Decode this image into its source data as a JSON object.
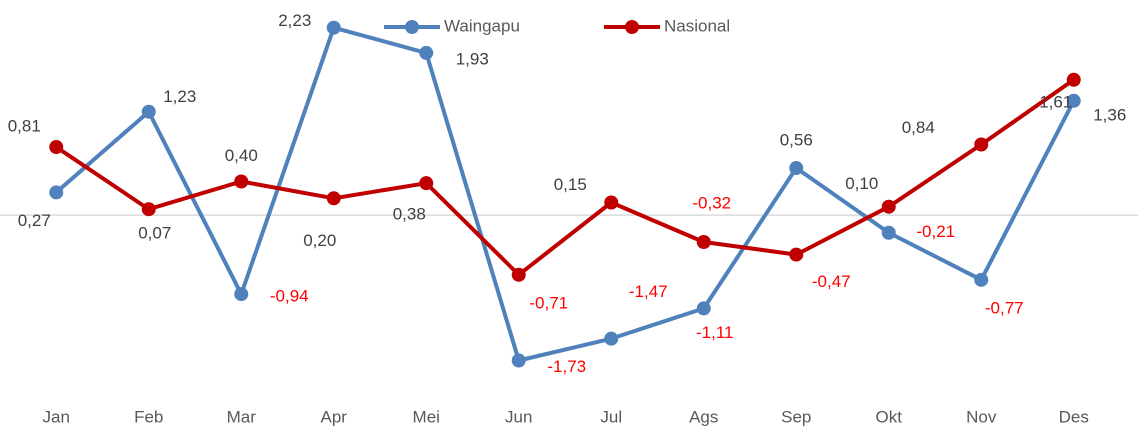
{
  "chart_data": {
    "type": "line",
    "categories": [
      "Jan",
      "Feb",
      "Mar",
      "Apr",
      "Mei",
      "Jun",
      "Jul",
      "Ags",
      "Sep",
      "Okt",
      "Nov",
      "Des"
    ],
    "series": [
      {
        "name": "Waingapu",
        "color": "#4f81bd",
        "values": [
          0.27,
          1.23,
          -0.94,
          2.23,
          1.93,
          -1.73,
          -1.47,
          -1.11,
          0.56,
          -0.21,
          -0.77,
          1.36
        ],
        "value_labels": [
          "0,27",
          "1,23",
          "-0,94",
          "2,23",
          "1,93",
          "-1,73",
          "-1,47",
          "-1,11",
          "0,56",
          "-0,21",
          "-0,77",
          "1,36"
        ]
      },
      {
        "name": "Nasional",
        "color": "#c00000",
        "values": [
          0.81,
          0.07,
          0.4,
          0.2,
          0.38,
          -0.71,
          0.15,
          -0.32,
          -0.47,
          0.1,
          0.84,
          1.61
        ],
        "value_labels": [
          "0,81",
          "0,07",
          "0,40",
          "0,20",
          "0,38",
          "-0,71",
          "0,15",
          "-0,32",
          "-0,47",
          "0,10",
          "0,84",
          "1,61"
        ]
      }
    ],
    "ylim": [
      -2.2,
      2.5
    ],
    "label_color": "#404040",
    "negative_label_color": "#ff0000",
    "legend": "top"
  }
}
